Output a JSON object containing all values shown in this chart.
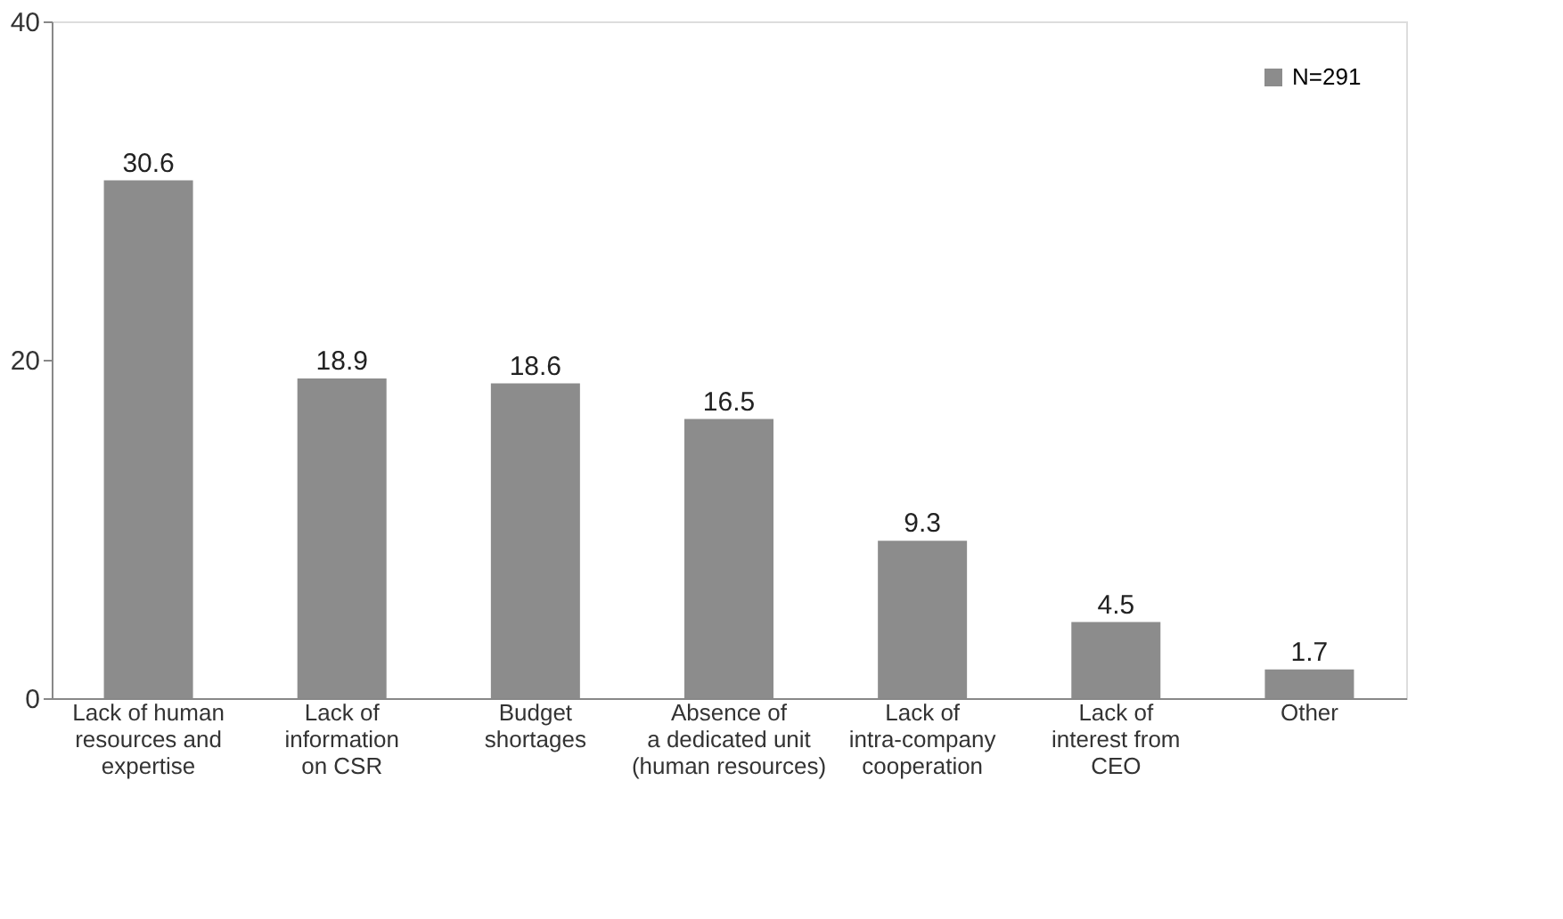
{
  "chart_data": {
    "type": "bar",
    "categories": [
      "Lack of human\nresources and\nexpertise",
      "Lack of\ninformation\non CSR",
      "Budget\nshortages",
      "Absence of\na dedicated unit\n(human resources)",
      "Lack of\nintra-company\ncooperation",
      "Lack of\ninterest from\nCEO",
      "Other"
    ],
    "series": [
      {
        "name": "N=291",
        "color": "#8c8c8c",
        "values": [
          30.6,
          18.9,
          18.6,
          16.5,
          9.3,
          4.5,
          1.7
        ]
      }
    ],
    "ylim": [
      0,
      40
    ],
    "yticks": [
      0,
      20,
      40
    ],
    "data_labels": true,
    "legend": "top right",
    "grid": false
  }
}
